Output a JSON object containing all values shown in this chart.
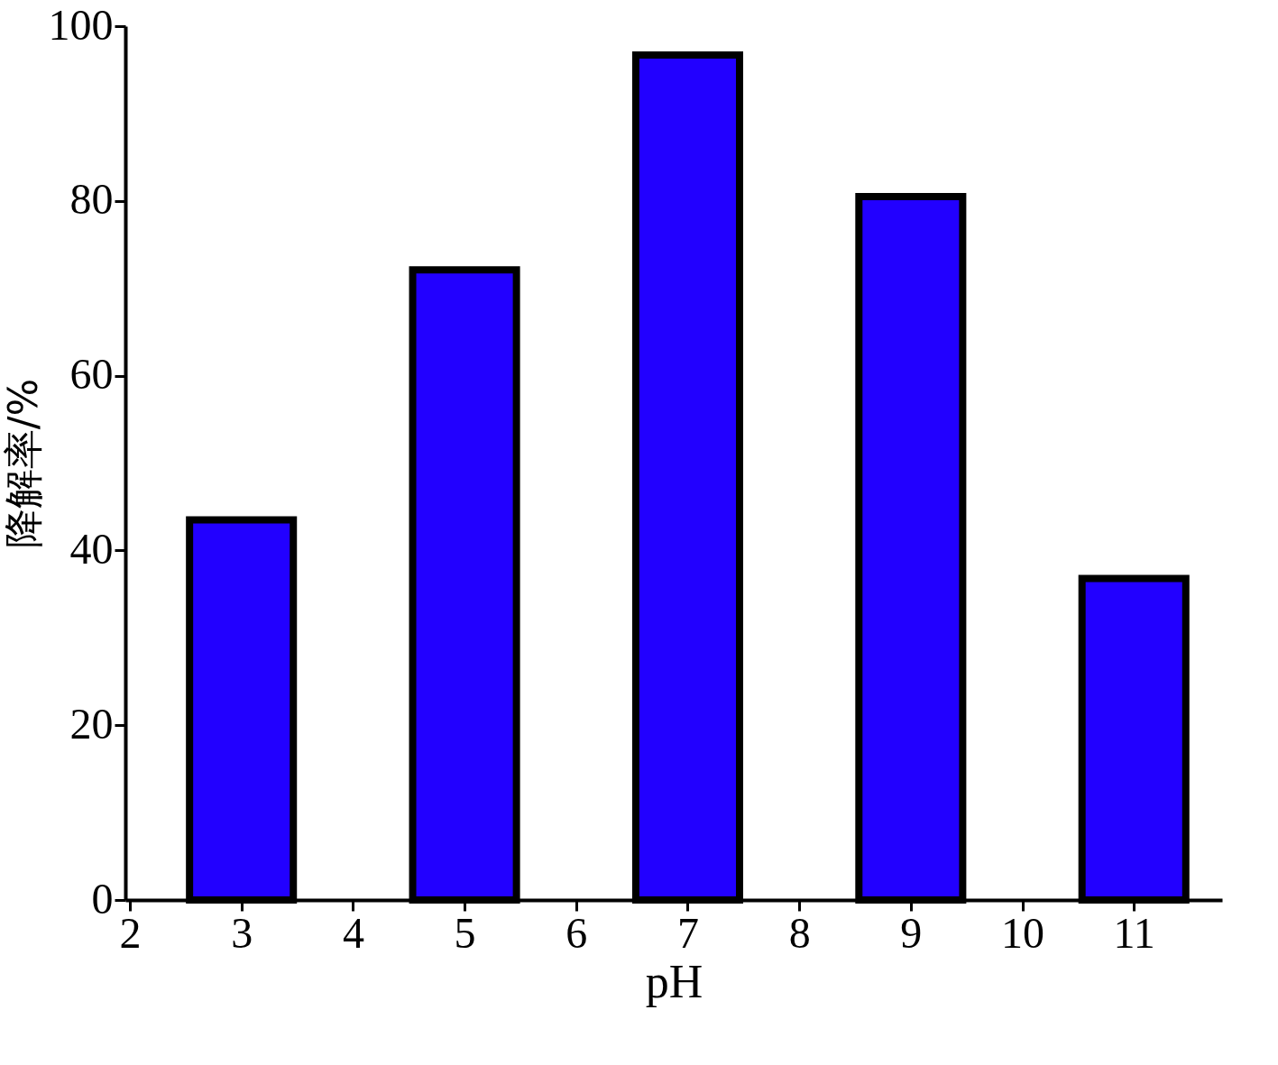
{
  "chart_data": {
    "type": "bar",
    "xlabel": "pH",
    "ylabel": "降解率/%",
    "x": [
      3,
      5,
      7,
      9,
      11
    ],
    "values": [
      43.5,
      72.1,
      96.7,
      80.5,
      36.8
    ],
    "color": "#2200ff",
    "xlim": [
      2,
      11.75
    ],
    "xticks": [
      2,
      3,
      4,
      5,
      6,
      7,
      8,
      9,
      10,
      11
    ],
    "ylim": [
      0,
      100
    ],
    "yticks": [
      0,
      20,
      40,
      60,
      80,
      100
    ],
    "grid": false
  }
}
